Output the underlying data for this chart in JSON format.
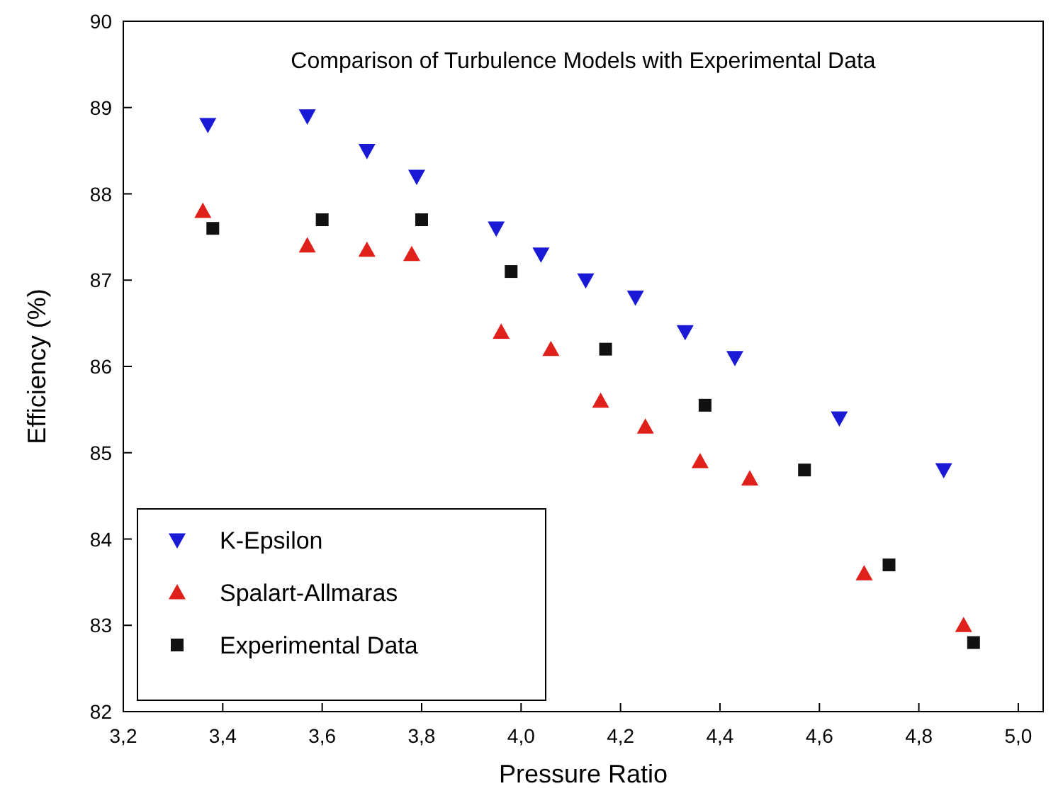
{
  "chart_data": {
    "type": "scatter",
    "title": "Comparison of Turbulence Models with Experimental Data",
    "xlabel": "Pressure Ratio",
    "ylabel": "Efficiency (%)",
    "xlim": [
      3.2,
      5.05
    ],
    "ylim": [
      82,
      90
    ],
    "xticks": [
      {
        "value": 3.2,
        "label": "3,2"
      },
      {
        "value": 3.4,
        "label": "3,4"
      },
      {
        "value": 3.6,
        "label": "3,6"
      },
      {
        "value": 3.8,
        "label": "3,8"
      },
      {
        "value": 4.0,
        "label": "4,0"
      },
      {
        "value": 4.2,
        "label": "4,2"
      },
      {
        "value": 4.4,
        "label": "4,4"
      },
      {
        "value": 4.6,
        "label": "4,6"
      },
      {
        "value": 4.8,
        "label": "4,8"
      },
      {
        "value": 5.0,
        "label": "5,0"
      }
    ],
    "yticks": [
      82,
      83,
      84,
      85,
      86,
      87,
      88,
      89,
      90
    ],
    "grid": false,
    "legend": "bottom left",
    "series": [
      {
        "name": "K-Epsilon",
        "color": "#1a1ad6",
        "marker": "triangle-down",
        "x": [
          3.37,
          3.57,
          3.69,
          3.79,
          3.95,
          4.04,
          4.13,
          4.23,
          4.33,
          4.43,
          4.64,
          4.85
        ],
        "values": [
          88.8,
          88.9,
          88.5,
          88.2,
          87.6,
          87.3,
          87.0,
          86.8,
          86.4,
          86.1,
          85.4,
          84.8
        ]
      },
      {
        "name": "Spalart-Allmaras",
        "color": "#e0201a",
        "marker": "triangle",
        "x": [
          3.36,
          3.57,
          3.69,
          3.78,
          3.96,
          4.06,
          4.16,
          4.25,
          4.36,
          4.46,
          4.69,
          4.89
        ],
        "values": [
          87.8,
          87.4,
          87.35,
          87.3,
          86.4,
          86.2,
          85.6,
          85.3,
          84.9,
          84.7,
          83.6,
          83.0
        ]
      },
      {
        "name": "Experimental Data",
        "color": "#111111",
        "marker": "square",
        "x": [
          3.38,
          3.6,
          3.8,
          3.98,
          4.17,
          4.37,
          4.57,
          4.74,
          4.91
        ],
        "values": [
          87.6,
          87.7,
          87.7,
          87.1,
          86.2,
          85.55,
          84.8,
          83.7,
          82.8
        ]
      }
    ]
  }
}
